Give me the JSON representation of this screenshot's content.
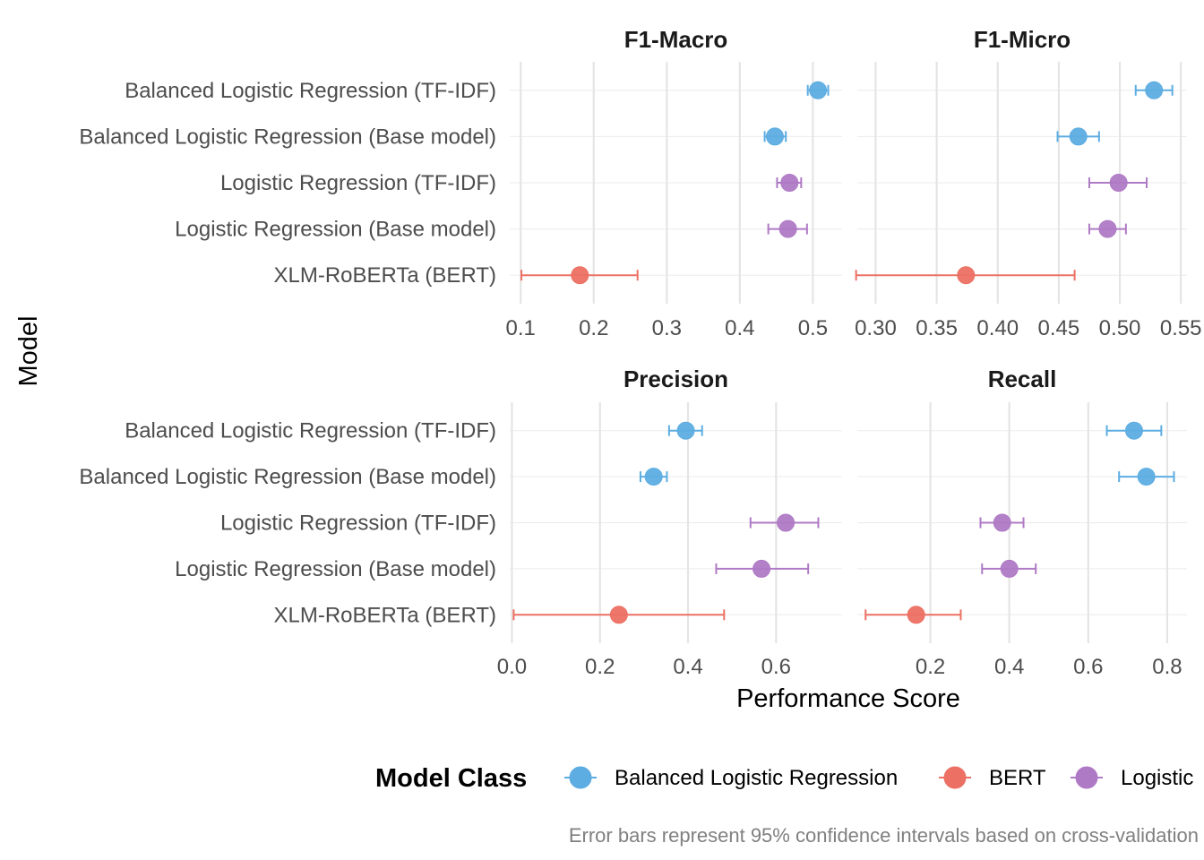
{
  "chart_data": {
    "type": "scatter",
    "title": "",
    "xlabel": "Performance Score",
    "ylabel": "Model",
    "caption": "Error bars represent 95% confidence intervals based on cross-validation",
    "models": [
      "Balanced Logistic Regression (TF-IDF)",
      "Balanced Logistic Regression (Base model)",
      "Logistic Regression (TF-IDF)",
      "Logistic Regression (Base model)",
      "XLM-RoBERTa (BERT)"
    ],
    "model_class": [
      "Balanced Logistic Regression",
      "Balanced Logistic Regression",
      "Logistic",
      "Logistic",
      "BERT"
    ],
    "legend": {
      "title": "Model Class",
      "placement": "bottom",
      "entries": [
        {
          "name": "Balanced Logistic Regression",
          "color": "#5DADE2"
        },
        {
          "name": "BERT",
          "color": "#EC7063"
        },
        {
          "name": "Logistic",
          "color": "#AF7AC5"
        }
      ]
    },
    "grid": true,
    "panels": [
      {
        "title": "F1-Macro",
        "xlim": [
          0.085,
          0.54
        ],
        "ticks": [
          0.1,
          0.2,
          0.3,
          0.4,
          0.5
        ],
        "tick_labels": [
          "0.1",
          "0.2",
          "0.3",
          "0.4",
          "0.5"
        ],
        "values": [
          0.507,
          0.448,
          0.468,
          0.466,
          0.181
        ],
        "lower": [
          0.493,
          0.434,
          0.451,
          0.439,
          0.101
        ],
        "upper": [
          0.521,
          0.463,
          0.484,
          0.492,
          0.26
        ]
      },
      {
        "title": "F1-Micro",
        "xlim": [
          0.285,
          0.555
        ],
        "ticks": [
          0.3,
          0.35,
          0.4,
          0.45,
          0.5,
          0.55
        ],
        "tick_labels": [
          "0.30",
          "0.35",
          "0.40",
          "0.45",
          "0.50",
          "0.55"
        ],
        "values": [
          0.528,
          0.466,
          0.499,
          0.49,
          0.374
        ],
        "lower": [
          0.513,
          0.449,
          0.475,
          0.475,
          0.284
        ],
        "upper": [
          0.543,
          0.483,
          0.522,
          0.505,
          0.463
        ]
      },
      {
        "title": "Precision",
        "xlim": [
          -0.005,
          0.75
        ],
        "ticks": [
          0.0,
          0.2,
          0.4,
          0.6
        ],
        "tick_labels": [
          "0.0",
          "0.2",
          "0.4",
          "0.6"
        ],
        "values": [
          0.395,
          0.322,
          0.622,
          0.567
        ],
        "lower": [
          0.357,
          0.292,
          0.542,
          0.464
        ],
        "upper": [
          0.432,
          0.352,
          0.696,
          0.673
        ],
        "values_bert": 0.243,
        "lower_bert": 0.004,
        "upper_bert": 0.482
      },
      {
        "title": "Recall",
        "xlim": [
          0.015,
          0.85
        ],
        "ticks": [
          0.2,
          0.4,
          0.6,
          0.8
        ],
        "tick_labels": [
          "0.2",
          "0.4",
          "0.6",
          "0.8"
        ],
        "values": [
          0.716,
          0.747,
          0.382,
          0.4
        ],
        "lower": [
          0.647,
          0.678,
          0.327,
          0.331
        ],
        "upper": [
          0.785,
          0.817,
          0.436,
          0.467
        ],
        "values_bert": 0.164,
        "lower_bert": 0.036,
        "upper_bert": 0.277
      }
    ]
  }
}
